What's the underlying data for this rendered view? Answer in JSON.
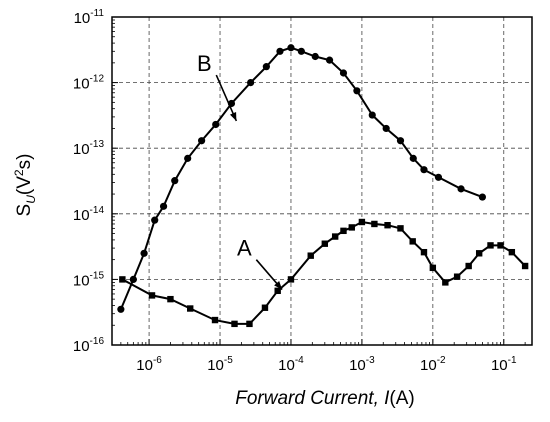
{
  "chart_data": {
    "type": "line",
    "xlabel": "Forward Current, I(A)",
    "ylabel": "S_U(V²s)",
    "x_scale": "log",
    "y_scale": "log",
    "xlim": [
      3e-07,
      0.25
    ],
    "ylim": [
      1e-16,
      1e-11
    ],
    "grid": true,
    "x_ticks": [
      {
        "value": 1e-06,
        "base": "10",
        "exp": "-6"
      },
      {
        "value": 1e-05,
        "base": "10",
        "exp": "-5"
      },
      {
        "value": 0.0001,
        "base": "10",
        "exp": "-4"
      },
      {
        "value": 0.001,
        "base": "10",
        "exp": "-3"
      },
      {
        "value": 0.01,
        "base": "10",
        "exp": "-2"
      },
      {
        "value": 0.1,
        "base": "10",
        "exp": "-1"
      }
    ],
    "y_ticks": [
      {
        "value": 1e-16,
        "base": "10",
        "exp": "-16"
      },
      {
        "value": 1e-15,
        "base": "10",
        "exp": "-15"
      },
      {
        "value": 1e-14,
        "base": "10",
        "exp": "-14"
      },
      {
        "value": 1e-13,
        "base": "10",
        "exp": "-13"
      },
      {
        "value": 1e-12,
        "base": "10",
        "exp": "-12"
      },
      {
        "value": 1e-11,
        "base": "10",
        "exp": "-11"
      }
    ],
    "series": [
      {
        "name": "B",
        "marker": "circle",
        "points": [
          [
            4e-07,
            3.5e-16
          ],
          [
            6e-07,
            1e-15
          ],
          [
            8.5e-07,
            2.5e-15
          ],
          [
            1.2e-06,
            8e-15
          ],
          [
            1.6e-06,
            1.3e-14
          ],
          [
            2.3e-06,
            3.2e-14
          ],
          [
            3.5e-06,
            7e-14
          ],
          [
            5.5e-06,
            1.3e-13
          ],
          [
            8.7e-06,
            2.3e-13
          ],
          [
            1.45e-05,
            4.8e-13
          ],
          [
            2.7e-05,
            1e-12
          ],
          [
            4.5e-05,
            1.75e-12
          ],
          [
            7e-05,
            3e-12
          ],
          [
            0.0001,
            3.4e-12
          ],
          [
            0.00014,
            3e-12
          ],
          [
            0.00022,
            2.5e-12
          ],
          [
            0.00035,
            2.2e-12
          ],
          [
            0.00055,
            1.4e-12
          ],
          [
            0.00085,
            7.5e-13
          ],
          [
            0.0014,
            3.2e-13
          ],
          [
            0.0022,
            2e-13
          ],
          [
            0.0035,
            1.3e-13
          ],
          [
            0.0053,
            7e-14
          ],
          [
            0.0075,
            4.7e-14
          ],
          [
            0.012,
            3.6e-14
          ],
          [
            0.025,
            2.4e-14
          ],
          [
            0.05,
            1.8e-14
          ]
        ]
      },
      {
        "name": "A",
        "marker": "square",
        "points": [
          [
            4.2e-07,
            1e-15
          ],
          [
            1.1e-06,
            5.7e-16
          ],
          [
            2e-06,
            5e-16
          ],
          [
            3.8e-06,
            3.6e-16
          ],
          [
            8.5e-06,
            2.4e-16
          ],
          [
            1.6e-05,
            2.1e-16
          ],
          [
            2.6e-05,
            2.1e-16
          ],
          [
            4.3e-05,
            3.7e-16
          ],
          [
            6.5e-05,
            6.7e-16
          ],
          [
            0.0001,
            1e-15
          ],
          [
            0.00019,
            2.3e-15
          ],
          [
            0.0003,
            3.5e-15
          ],
          [
            0.00042,
            4.5e-15
          ],
          [
            0.00055,
            5.5e-15
          ],
          [
            0.00072,
            6.2e-15
          ],
          [
            0.001,
            7.5e-15
          ],
          [
            0.0015,
            7e-15
          ],
          [
            0.0023,
            6.7e-15
          ],
          [
            0.0035,
            6e-15
          ],
          [
            0.0052,
            3.8e-15
          ],
          [
            0.0075,
            2.6e-15
          ],
          [
            0.01,
            1.5e-15
          ],
          [
            0.015,
            9e-16
          ],
          [
            0.022,
            1.1e-15
          ],
          [
            0.032,
            1.6e-15
          ],
          [
            0.045,
            2.5e-15
          ],
          [
            0.065,
            3.3e-15
          ],
          [
            0.09,
            3.3e-15
          ],
          [
            0.13,
            2.6e-15
          ],
          [
            0.2,
            1.6e-15
          ]
        ]
      }
    ],
    "annotations": [
      {
        "text": "B",
        "x": 6e-06,
        "y": 1.5e-12,
        "arrow_to": [
          1.7e-05,
          2.6e-13
        ]
      },
      {
        "text": "A",
        "x": 2.2e-05,
        "y": 2.3e-15,
        "arrow_to": [
          7.5e-05,
          7e-16
        ]
      }
    ]
  }
}
